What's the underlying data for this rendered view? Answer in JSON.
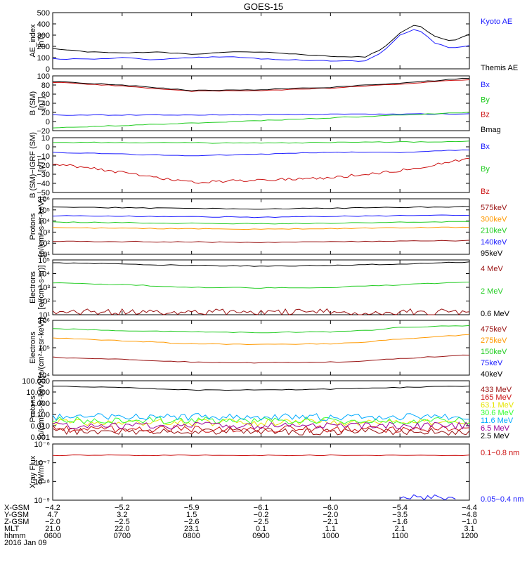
{
  "title": "GOES-15",
  "colors": {
    "black": "#000000",
    "blue": "#1a1aff",
    "green": "#22cc22",
    "red": "#cc1111",
    "darkred": "#991111",
    "orange": "#ff9900",
    "cyan": "#00aaff",
    "yellow": "#e6e600",
    "purple": "#990099",
    "lime": "#33ff33"
  },
  "chart_data": [
    {
      "id": "ae",
      "type": "line",
      "ylabel": [
        "AE_index",
        "[nT]"
      ],
      "yscale": "linear",
      "ylim": [
        0,
        500
      ],
      "yticks": [
        "0",
        "100",
        "200",
        "300",
        "400",
        "500"
      ],
      "series": [
        {
          "name": "Kyoto AE",
          "color": "blue",
          "style": "smooth",
          "x": [
            "0600",
            "0630",
            "0700",
            "0730",
            "0800",
            "0830",
            "0900",
            "0930",
            "1000",
            "1030",
            "1045",
            "1100",
            "1115",
            "1130",
            "1145",
            "1200"
          ],
          "y": [
            90,
            85,
            100,
            80,
            100,
            110,
            90,
            80,
            70,
            70,
            150,
            300,
            360,
            230,
            180,
            210
          ]
        },
        {
          "name": "Themis AE",
          "color": "black",
          "style": "smooth",
          "x": [
            "0600",
            "0630",
            "0700",
            "0730",
            "0800",
            "0830",
            "0900",
            "0930",
            "1000",
            "1030",
            "1045",
            "1100",
            "1115",
            "1130",
            "1145",
            "1200"
          ],
          "y": [
            180,
            150,
            140,
            150,
            130,
            150,
            150,
            130,
            110,
            105,
            180,
            320,
            400,
            290,
            240,
            310
          ]
        }
      ]
    },
    {
      "id": "bsm",
      "type": "line",
      "ylabel": [
        "B (SM)",
        "[nT]"
      ],
      "yscale": "linear",
      "ylim": [
        -20,
        100
      ],
      "yticks": [
        "−20",
        "0",
        "20",
        "40",
        "60",
        "80",
        "100"
      ],
      "series": [
        {
          "name": "Bx",
          "color": "blue",
          "style": "smooth",
          "x": [
            "0600",
            "0900",
            "1200"
          ],
          "y": [
            14,
            15,
            17
          ]
        },
        {
          "name": "By",
          "color": "green",
          "style": "smooth",
          "x": [
            "0600",
            "0900",
            "1200"
          ],
          "y": [
            -14,
            2,
            20
          ]
        },
        {
          "name": "Bz",
          "color": "red",
          "style": "smooth",
          "x": [
            "0600",
            "0700",
            "0800",
            "0900",
            "1000",
            "1100",
            "1200"
          ],
          "y": [
            86,
            78,
            66,
            68,
            73,
            82,
            92
          ]
        },
        {
          "name": "Bmag",
          "color": "black",
          "style": "smooth",
          "x": [
            "0600",
            "0700",
            "0800",
            "0900",
            "1000",
            "1100",
            "1200"
          ],
          "y": [
            88,
            80,
            68,
            70,
            75,
            84,
            95
          ]
        }
      ]
    },
    {
      "id": "bsmigrf",
      "type": "line",
      "ylabel": [
        "B (SM)−IGRF (SM)",
        "[nT]"
      ],
      "yscale": "linear",
      "ylim": [
        -50,
        10
      ],
      "yticks": [
        "−50",
        "−40",
        "−30",
        "−20",
        "−10",
        "0",
        "10"
      ],
      "series": [
        {
          "name": "Bx",
          "color": "blue",
          "style": "smooth",
          "x": [
            "0600",
            "0700",
            "0800",
            "0900",
            "1000",
            "1100",
            "1200"
          ],
          "y": [
            -6,
            -8,
            -10,
            -8,
            -6,
            -6,
            -3
          ]
        },
        {
          "name": "By",
          "color": "green",
          "style": "smooth",
          "x": [
            "0600",
            "0900",
            "1200"
          ],
          "y": [
            5,
            4,
            6
          ]
        },
        {
          "name": "Bz",
          "color": "red",
          "style": "noisy",
          "x": [
            "0600",
            "0700",
            "0800",
            "0900",
            "1000",
            "1100",
            "1200"
          ],
          "y": [
            -18,
            -28,
            -39,
            -36,
            -34,
            -26,
            -13
          ]
        }
      ]
    },
    {
      "id": "protons",
      "type": "line",
      "ylabel": [
        "Protons",
        "[p/(cm²-s-sr-keV)]"
      ],
      "yscale": "log",
      "ylim": [
        10,
        1000000
      ],
      "yticks": [
        "10¹",
        "10²",
        "10³",
        "10⁴",
        "10⁵",
        "10⁶"
      ],
      "series": [
        {
          "name": "575keV",
          "color": "darkred",
          "style": "smooth",
          "x": [
            "0600",
            "0900",
            "1200"
          ],
          "y": [
            150,
            120,
            170
          ]
        },
        {
          "name": "300keV",
          "color": "orange",
          "style": "smooth",
          "x": [
            "0600",
            "0900",
            "1200"
          ],
          "y": [
            2500,
            1800,
            2800
          ]
        },
        {
          "name": "210keV",
          "color": "green",
          "style": "smooth",
          "x": [
            "0600",
            "0900",
            "1200"
          ],
          "y": [
            8000,
            5500,
            9000
          ]
        },
        {
          "name": "140keV",
          "color": "blue",
          "style": "smooth",
          "x": [
            "0600",
            "0900",
            "1200"
          ],
          "y": [
            30000,
            22000,
            35000
          ]
        },
        {
          "name": "95keV",
          "color": "black",
          "style": "smooth",
          "x": [
            "0600",
            "0900",
            "1200"
          ],
          "y": [
            180000,
            120000,
            200000
          ]
        }
      ]
    },
    {
      "id": "electrons1",
      "type": "line",
      "ylabel": [
        "Electrons",
        "[e/(cm²-s-sr)]"
      ],
      "yscale": "log",
      "ylim": [
        10,
        100000
      ],
      "yticks": [
        "10¹",
        "10²",
        "10³",
        "10⁴",
        "10⁵"
      ],
      "series": [
        {
          "name": "4 MeV",
          "color": "darkred",
          "style": "noisy",
          "x": [
            "0600",
            "0900",
            "1200"
          ],
          "y": [
            15,
            15,
            15
          ]
        },
        {
          "name": "2 MeV",
          "color": "green",
          "style": "smooth",
          "x": [
            "0600",
            "0700",
            "0800",
            "0900",
            "1000",
            "1100",
            "1200"
          ],
          "y": [
            2200,
            1600,
            1000,
            900,
            1000,
            1500,
            2600
          ]
        },
        {
          "name": "0.6 MeV",
          "color": "black",
          "style": "smooth",
          "x": [
            "0600",
            "0700",
            "0800",
            "0900",
            "1000",
            "1100",
            "1200"
          ],
          "y": [
            60000,
            50000,
            40000,
            35000,
            40000,
            50000,
            70000
          ]
        }
      ]
    },
    {
      "id": "electrons2",
      "type": "line",
      "ylabel": [
        "Electrons",
        "[e/(cm²-s-sr-keV)]"
      ],
      "yscale": "log",
      "ylim": [
        10000,
        1000000
      ],
      "yticks": [
        "10⁴",
        "10⁵",
        "10⁶"
      ],
      "series": [
        {
          "name": "475keV",
          "color": "darkred",
          "style": "smooth",
          "x": [
            "0600",
            "0700",
            "0800",
            "0900",
            "1000",
            "1030",
            "1100",
            "1200"
          ],
          "y": [
            45000,
            38000,
            30000,
            28000,
            30000,
            33000,
            40000,
            55000
          ]
        },
        {
          "name": "275keV",
          "color": "orange",
          "style": "smooth",
          "x": [
            "0600",
            "0700",
            "0800",
            "0900",
            "1000",
            "1030",
            "1100",
            "1200"
          ],
          "y": [
            230000,
            180000,
            140000,
            130000,
            140000,
            160000,
            210000,
            300000
          ]
        },
        {
          "name": "150keV",
          "color": "green",
          "style": "smooth",
          "x": [
            "0600",
            "0700",
            "0800",
            "0900",
            "1000",
            "1030",
            "1100",
            "1200"
          ],
          "y": [
            500000,
            420000,
            380000,
            360000,
            380000,
            420000,
            550000,
            650000
          ]
        },
        {
          "name": "75keV",
          "color": "blue",
          "style": "smooth",
          "x": [
            "0600",
            "1200"
          ],
          "y": [
            null,
            null
          ]
        },
        {
          "name": "40keV",
          "color": "black",
          "style": "smooth",
          "x": [
            "0600",
            "1200"
          ],
          "y": [
            null,
            null
          ]
        }
      ]
    },
    {
      "id": "protons2",
      "type": "line",
      "ylabel": [
        "Protons",
        "[p/(cm²-s-sr-keV)]"
      ],
      "yscale": "log",
      "ylim": [
        0.001,
        100
      ],
      "yticks": [
        "0.001",
        "0.010",
        "0.100",
        "1.000",
        "10.000",
        "100.000"
      ],
      "series": [
        {
          "name": "433 MeV",
          "color": "darkred",
          "style": "noisy",
          "x": [
            "0600",
            "1200"
          ],
          "y": [
            0.003,
            0.003
          ]
        },
        {
          "name": "165 MeV",
          "color": "red",
          "style": "noisy",
          "x": [
            "0600",
            "1200"
          ],
          "y": [
            0.005,
            0.005
          ]
        },
        {
          "name": "63.1 MeV",
          "color": "yellow",
          "style": "noisy",
          "x": [
            "0600",
            "1200"
          ],
          "y": [
            0.02,
            0.02
          ]
        },
        {
          "name": "30.6 MeV",
          "color": "lime",
          "style": "noisy",
          "x": [
            "0600",
            "1200"
          ],
          "y": [
            0.03,
            0.03
          ]
        },
        {
          "name": "11.6 MeV",
          "color": "cyan",
          "style": "noisy",
          "x": [
            "0600",
            "1200"
          ],
          "y": [
            0.06,
            0.06
          ]
        },
        {
          "name": "6.5 MeV",
          "color": "purple",
          "style": "noisy",
          "x": [
            "0600",
            "1200"
          ],
          "y": [
            0.01,
            0.01
          ]
        },
        {
          "name": "2.5 MeV",
          "color": "black",
          "style": "smooth",
          "x": [
            "0600",
            "0700",
            "0800",
            "0900",
            "1000",
            "1100",
            "1200"
          ],
          "y": [
            35,
            25,
            15,
            15,
            18,
            25,
            35
          ]
        }
      ]
    },
    {
      "id": "xray",
      "type": "line",
      "ylabel": [
        "Xray Flux",
        "[W/m²]"
      ],
      "yscale": "log",
      "ylim": [
        1e-09,
        1e-06
      ],
      "yticks": [
        "10⁻⁹",
        "10⁻⁸",
        "10⁻⁷",
        "10⁻⁶"
      ],
      "series": [
        {
          "name": "0.1−0.8 nm",
          "color": "red",
          "style": "smooth",
          "x": [
            "0600",
            "1200"
          ],
          "y": [
            2.5e-07,
            2.5e-07
          ]
        },
        {
          "name": "0.05−0.4 nm",
          "color": "blue",
          "style": "noisy",
          "x": [
            "1100",
            "1115",
            "1130",
            "1145",
            "1150"
          ],
          "y": [
            1e-09,
            1.4e-09,
            1.8e-09,
            1.2e-09,
            1e-09
          ]
        }
      ]
    }
  ],
  "x_axis": {
    "ticks": [
      {
        "X-GSM": "−4.2",
        "Y-GSM": "4.7",
        "Z-GSM": "−2.0",
        "MLT": "21.0",
        "hhmm": "0600"
      },
      {
        "X-GSM": "−5.2",
        "Y-GSM": "3.2",
        "Z-GSM": "−2.5",
        "MLT": "22.0",
        "hhmm": "0700"
      },
      {
        "X-GSM": "−5.9",
        "Y-GSM": "1.5",
        "Z-GSM": "−2.6",
        "MLT": "23.1",
        "hhmm": "0800"
      },
      {
        "X-GSM": "−6.1",
        "Y-GSM": "−0.2",
        "Z-GSM": "−2.5",
        "MLT": "0.1",
        "hhmm": "0900"
      },
      {
        "X-GSM": "−6.0",
        "Y-GSM": "−2.0",
        "Z-GSM": "−2.1",
        "MLT": "1.1",
        "hhmm": "1000"
      },
      {
        "X-GSM": "−5.4",
        "Y-GSM": "−3.5",
        "Z-GSM": "−1.6",
        "MLT": "2.1",
        "hhmm": "1100"
      },
      {
        "X-GSM": "−4.4",
        "Y-GSM": "−4.8",
        "Z-GSM": "−1.0",
        "MLT": "3.1",
        "hhmm": "1200"
      }
    ],
    "row_labels": [
      "X-GSM",
      "Y-GSM",
      "Z-GSM",
      "MLT",
      "hhmm"
    ],
    "date": "2016 Jan 09"
  }
}
